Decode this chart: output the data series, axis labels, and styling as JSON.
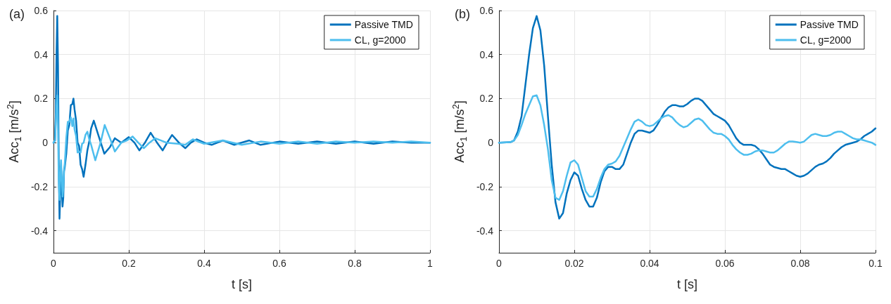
{
  "chart_data": [
    {
      "type": "line",
      "title": "(a)",
      "xlabel": "t [s]",
      "ylabel": "Acc$_{1}$ [m/s$^{2}$]",
      "xlim": [
        0,
        1
      ],
      "xticks": [
        0,
        0.2,
        0.4,
        0.6,
        0.8,
        1
      ],
      "ylim": [
        -0.5,
        0.6
      ],
      "yticks": [
        -0.4,
        -0.2,
        0,
        0.2,
        0.4,
        0.6
      ],
      "grid": true,
      "legend": "top right",
      "marker": "none",
      "line_style": "solid",
      "series": [
        {
          "name": "Passive TMD",
          "color": "#0072bd",
          "x": [
            0,
            0.004,
            0.006,
            0.008,
            0.01,
            0.012,
            0.014,
            0.016,
            0.018,
            0.02,
            0.022,
            0.024,
            0.026,
            0.028,
            0.03,
            0.034,
            0.038,
            0.042,
            0.046,
            0.05,
            0.053,
            0.056,
            0.06,
            0.064,
            0.068,
            0.072,
            0.076,
            0.08,
            0.085,
            0.09,
            0.095,
            0.1,
            0.107,
            0.12,
            0.135,
            0.15,
            0.163,
            0.18,
            0.2,
            0.215,
            0.228,
            0.243,
            0.258,
            0.275,
            0.29,
            0.302,
            0.315,
            0.333,
            0.35,
            0.365,
            0.38,
            0.4,
            0.42,
            0.45,
            0.48,
            0.52,
            0.55,
            0.6,
            0.65,
            0.7,
            0.75,
            0.8,
            0.85,
            0.9,
            0.95,
            1
          ],
          "values": [
            0,
            0.01,
            0.12,
            0.4,
            0.575,
            0.35,
            -0.1,
            -0.345,
            -0.23,
            -0.135,
            -0.21,
            -0.29,
            -0.25,
            -0.13,
            -0.11,
            -0.05,
            0.055,
            0.08,
            0.17,
            0.175,
            0.2,
            0.15,
            0.1,
            0,
            -0.015,
            -0.1,
            -0.12,
            -0.155,
            -0.1,
            -0.035,
            0.005,
            0.065,
            0.1,
            0.03,
            -0.05,
            -0.02,
            0.02,
            0,
            0.025,
            0,
            -0.035,
            0,
            0.045,
            0,
            -0.035,
            0,
            0.035,
            0,
            -0.025,
            0,
            0.015,
            0,
            -0.01,
            0.01,
            -0.01,
            0.01,
            -0.01,
            0.005,
            -0.005,
            0.005,
            -0.005,
            0.005,
            -0.005,
            0.005,
            0,
            0
          ]
        },
        {
          "name": "CL, g=2000",
          "color": "#4dbeee",
          "x": [
            0,
            0.004,
            0.006,
            0.008,
            0.01,
            0.012,
            0.014,
            0.016,
            0.018,
            0.02,
            0.022,
            0.024,
            0.026,
            0.028,
            0.03,
            0.034,
            0.038,
            0.042,
            0.046,
            0.05,
            0.053,
            0.056,
            0.06,
            0.064,
            0.068,
            0.072,
            0.076,
            0.08,
            0.085,
            0.09,
            0.095,
            0.1,
            0.111,
            0.125,
            0.136,
            0.15,
            0.163,
            0.18,
            0.195,
            0.21,
            0.225,
            0.24,
            0.255,
            0.27,
            0.3,
            0.33,
            0.35,
            0.37,
            0.4,
            0.45,
            0.5,
            0.55,
            0.6,
            0.65,
            0.7,
            0.75,
            0.8,
            0.85,
            0.9,
            0.95,
            1
          ],
          "values": [
            0,
            0.01,
            0.08,
            0.17,
            0.215,
            0.08,
            -0.17,
            -0.26,
            -0.15,
            -0.08,
            -0.16,
            -0.245,
            -0.21,
            -0.12,
            -0.095,
            0.02,
            0.095,
            0.095,
            0.115,
            0.075,
            0.11,
            0.06,
            0.03,
            -0.045,
            -0.04,
            -0.045,
            -0.005,
            0,
            0.035,
            0.05,
            0.015,
            -0.01,
            -0.08,
            0,
            0.08,
            0.02,
            -0.04,
            0,
            0.01,
            0.028,
            0,
            -0.025,
            0,
            0.02,
            0,
            -0.005,
            -0.01,
            0.015,
            -0.005,
            0.01,
            -0.01,
            0.005,
            -0.005,
            0.005,
            -0.005,
            0.005,
            0,
            0.005,
            0,
            0.005,
            0
          ]
        }
      ]
    },
    {
      "type": "line",
      "title": "(b)",
      "xlabel": "t [s]",
      "ylabel": "Acc$_{1}$ [m/s$^{2}$]",
      "xlim": [
        0,
        0.1
      ],
      "xticks": [
        0,
        0.02,
        0.04,
        0.06,
        0.08,
        0.1
      ],
      "ylim": [
        -0.5,
        0.6
      ],
      "yticks": [
        -0.4,
        -0.2,
        0,
        0.2,
        0.4,
        0.6
      ],
      "grid": true,
      "legend": "top right",
      "marker": "none",
      "line_style": "solid",
      "x": [
        0,
        0.003,
        0.004,
        0.005,
        0.006,
        0.007,
        0.008,
        0.009,
        0.01,
        0.011,
        0.012,
        0.013,
        0.014,
        0.015,
        0.016,
        0.017,
        0.018,
        0.019,
        0.02,
        0.021,
        0.022,
        0.023,
        0.024,
        0.025,
        0.026,
        0.027,
        0.028,
        0.029,
        0.03,
        0.031,
        0.032,
        0.033,
        0.034,
        0.035,
        0.036,
        0.037,
        0.038,
        0.039,
        0.04,
        0.041,
        0.042,
        0.043,
        0.044,
        0.045,
        0.046,
        0.047,
        0.048,
        0.049,
        0.05,
        0.051,
        0.052,
        0.053,
        0.054,
        0.055,
        0.056,
        0.057,
        0.058,
        0.059,
        0.06,
        0.061,
        0.062,
        0.063,
        0.064,
        0.065,
        0.066,
        0.067,
        0.068,
        0.069,
        0.07,
        0.071,
        0.072,
        0.073,
        0.074,
        0.075,
        0.076,
        0.077,
        0.078,
        0.079,
        0.08,
        0.081,
        0.082,
        0.083,
        0.084,
        0.085,
        0.086,
        0.087,
        0.088,
        0.089,
        0.09,
        0.091,
        0.092,
        0.093,
        0.094,
        0.095,
        0.096,
        0.097,
        0.098,
        0.099,
        0.1
      ],
      "series": [
        {
          "name": "Passive TMD",
          "color": "#0072bd",
          "values": [
            0,
            0.002,
            0.01,
            0.05,
            0.12,
            0.26,
            0.4,
            0.52,
            0.575,
            0.51,
            0.35,
            0.12,
            -0.1,
            -0.27,
            -0.345,
            -0.32,
            -0.23,
            -0.17,
            -0.135,
            -0.15,
            -0.21,
            -0.26,
            -0.29,
            -0.29,
            -0.25,
            -0.18,
            -0.13,
            -0.11,
            -0.11,
            -0.12,
            -0.12,
            -0.1,
            -0.05,
            0,
            0.04,
            0.055,
            0.055,
            0.05,
            0.045,
            0.055,
            0.08,
            0.11,
            0.14,
            0.16,
            0.17,
            0.17,
            0.165,
            0.165,
            0.175,
            0.19,
            0.2,
            0.2,
            0.19,
            0.17,
            0.15,
            0.13,
            0.12,
            0.11,
            0.1,
            0.08,
            0.05,
            0.02,
            0,
            -0.01,
            -0.01,
            -0.01,
            -0.015,
            -0.03,
            -0.05,
            -0.075,
            -0.1,
            -0.11,
            -0.115,
            -0.12,
            -0.12,
            -0.13,
            -0.14,
            -0.15,
            -0.155,
            -0.15,
            -0.14,
            -0.125,
            -0.11,
            -0.1,
            -0.095,
            -0.085,
            -0.07,
            -0.05,
            -0.035,
            -0.02,
            -0.01,
            -0.005,
            0,
            0.005,
            0.015,
            0.03,
            0.04,
            0.05,
            0.065
          ]
        },
        {
          "name": "CL, g=2000",
          "color": "#4dbeee",
          "values": [
            0,
            0.002,
            0.01,
            0.035,
            0.08,
            0.13,
            0.17,
            0.21,
            0.215,
            0.17,
            0.08,
            -0.03,
            -0.17,
            -0.25,
            -0.26,
            -0.22,
            -0.15,
            -0.09,
            -0.08,
            -0.1,
            -0.16,
            -0.22,
            -0.245,
            -0.245,
            -0.21,
            -0.16,
            -0.12,
            -0.1,
            -0.095,
            -0.085,
            -0.06,
            -0.02,
            0.02,
            0.06,
            0.095,
            0.105,
            0.095,
            0.08,
            0.075,
            0.08,
            0.095,
            0.11,
            0.12,
            0.125,
            0.115,
            0.095,
            0.08,
            0.07,
            0.075,
            0.09,
            0.105,
            0.11,
            0.1,
            0.08,
            0.06,
            0.045,
            0.04,
            0.04,
            0.03,
            0.015,
            -0.01,
            -0.03,
            -0.045,
            -0.055,
            -0.055,
            -0.05,
            -0.04,
            -0.035,
            -0.035,
            -0.04,
            -0.045,
            -0.045,
            -0.035,
            -0.02,
            -0.005,
            0.005,
            0.005,
            0.003,
            0,
            0.005,
            0.02,
            0.035,
            0.04,
            0.035,
            0.03,
            0.03,
            0.035,
            0.045,
            0.05,
            0.05,
            0.04,
            0.03,
            0.02,
            0.015,
            0.015,
            0.01,
            0.005,
            0,
            -0.01
          ]
        }
      ]
    }
  ]
}
